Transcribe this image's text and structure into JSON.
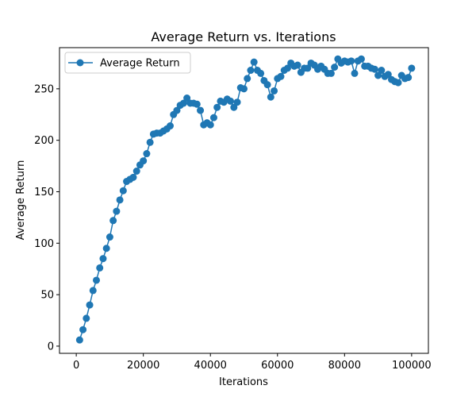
{
  "chart_data": {
    "type": "line",
    "title": "Average Return vs. Iterations",
    "xlabel": "Iterations",
    "ylabel": "Average Return",
    "xlim": [
      -5000,
      105000
    ],
    "ylim": [
      -7,
      290
    ],
    "xticks": [
      0,
      20000,
      40000,
      60000,
      80000,
      100000
    ],
    "yticks": [
      0,
      50,
      100,
      150,
      200,
      250
    ],
    "grid": false,
    "legend_position": "upper-left",
    "series": [
      {
        "name": "Average Return",
        "color": "#1f77b4",
        "marker": "circle",
        "x": [
          1000,
          2000,
          3000,
          4000,
          5000,
          6000,
          7000,
          8000,
          9000,
          10000,
          11000,
          12000,
          13000,
          14000,
          15000,
          16000,
          17000,
          18000,
          19000,
          20000,
          21000,
          22000,
          23000,
          24000,
          25000,
          26000,
          27000,
          28000,
          29000,
          30000,
          31000,
          32000,
          33000,
          34000,
          35000,
          36000,
          37000,
          38000,
          39000,
          40000,
          41000,
          42000,
          43000,
          44000,
          45000,
          46000,
          47000,
          48000,
          49000,
          50000,
          51000,
          52000,
          53000,
          54000,
          55000,
          56000,
          57000,
          58000,
          59000,
          60000,
          61000,
          62000,
          63000,
          64000,
          65000,
          66000,
          67000,
          68000,
          69000,
          70000,
          71000,
          72000,
          73000,
          74000,
          75000,
          76000,
          77000,
          78000,
          79000,
          80000,
          81000,
          82000,
          83000,
          84000,
          85000,
          86000,
          87000,
          88000,
          89000,
          90000,
          91000,
          92000,
          93000,
          94000,
          95000,
          96000,
          97000,
          98000,
          99000,
          100000
        ],
        "y": [
          6,
          16,
          27,
          40,
          54,
          64,
          76,
          85,
          95,
          106,
          122,
          131,
          142,
          151,
          160,
          162,
          164,
          170,
          176,
          180,
          187,
          198,
          206,
          207,
          207,
          209,
          211,
          214,
          225,
          229,
          234,
          236,
          241,
          236,
          236,
          235,
          229,
          215,
          217,
          215,
          222,
          232,
          238,
          237,
          240,
          238,
          232,
          237,
          251,
          250,
          260,
          268,
          276,
          268,
          265,
          258,
          254,
          242,
          248,
          260,
          262,
          268,
          270,
          275,
          272,
          273,
          266,
          270,
          270,
          275,
          273,
          269,
          272,
          269,
          265,
          265,
          271,
          279,
          275,
          277,
          276,
          277,
          265,
          277,
          279,
          272,
          272,
          270,
          269,
          263,
          268,
          262,
          264,
          259,
          257,
          256,
          263,
          260,
          261,
          270
        ]
      }
    ]
  }
}
